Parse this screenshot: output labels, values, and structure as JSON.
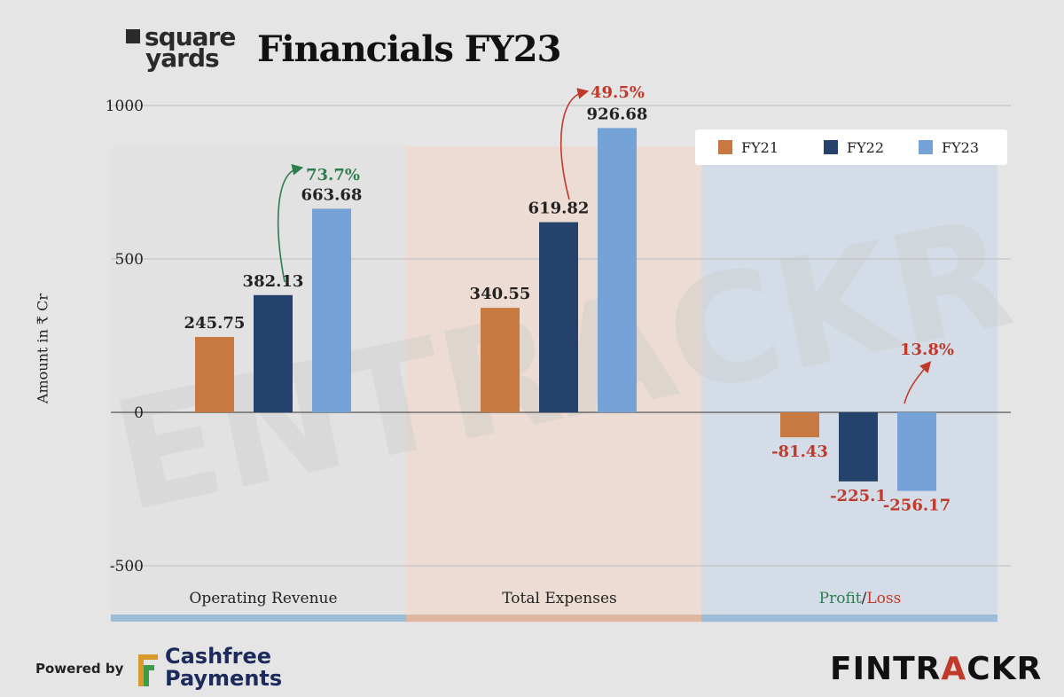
{
  "brand": {
    "company_line1": "square",
    "company_line2": "yards",
    "title": "Financials FY23",
    "powered_by": "Powered by",
    "sponsor_line1": "Cashfree",
    "sponsor_line2": "Payments",
    "publisher_a": "FINTR",
    "publisher_b": "A",
    "publisher_c": "CKR",
    "watermark": "ENTRACKR"
  },
  "colors": {
    "FY21": "#c87941",
    "FY22": "#24426b",
    "FY23": "#75a2d7",
    "positive": "#2e7d4f",
    "negative": "#c0392b"
  },
  "chart_data": {
    "type": "bar",
    "title": "Financials FY23",
    "ylabel": "Amount in ₹ Cr",
    "ylim": [
      -500,
      1000
    ],
    "yticks": [
      "-500",
      "0",
      "500",
      "1000"
    ],
    "yticks_values": [
      -500,
      0,
      500,
      1000
    ],
    "categories": [
      "Operating Revenue",
      "Total Expenses",
      "Profit/Loss"
    ],
    "category_parts": {
      "profit": "Profit",
      "sep": "/",
      "loss": "Loss"
    },
    "legend_position": "top-right",
    "series": [
      {
        "name": "FY21",
        "values": [
          245.75,
          340.55,
          -81.43
        ],
        "labels": [
          "245.75",
          "340.55",
          "-81.43"
        ]
      },
      {
        "name": "FY22",
        "values": [
          382.13,
          619.82,
          -225.1
        ],
        "labels": [
          "382.13",
          "619.82",
          "-225.1"
        ]
      },
      {
        "name": "FY23",
        "values": [
          663.68,
          926.68,
          -256.17
        ],
        "labels": [
          "663.68",
          "926.68",
          "-256.17"
        ]
      }
    ],
    "annotations": [
      {
        "category": "Operating Revenue",
        "text": "73.7%",
        "color": "positive"
      },
      {
        "category": "Total Expenses",
        "text": "49.5%",
        "color": "negative"
      },
      {
        "category": "Profit/Loss",
        "text": "13.8%",
        "color": "negative"
      }
    ]
  }
}
